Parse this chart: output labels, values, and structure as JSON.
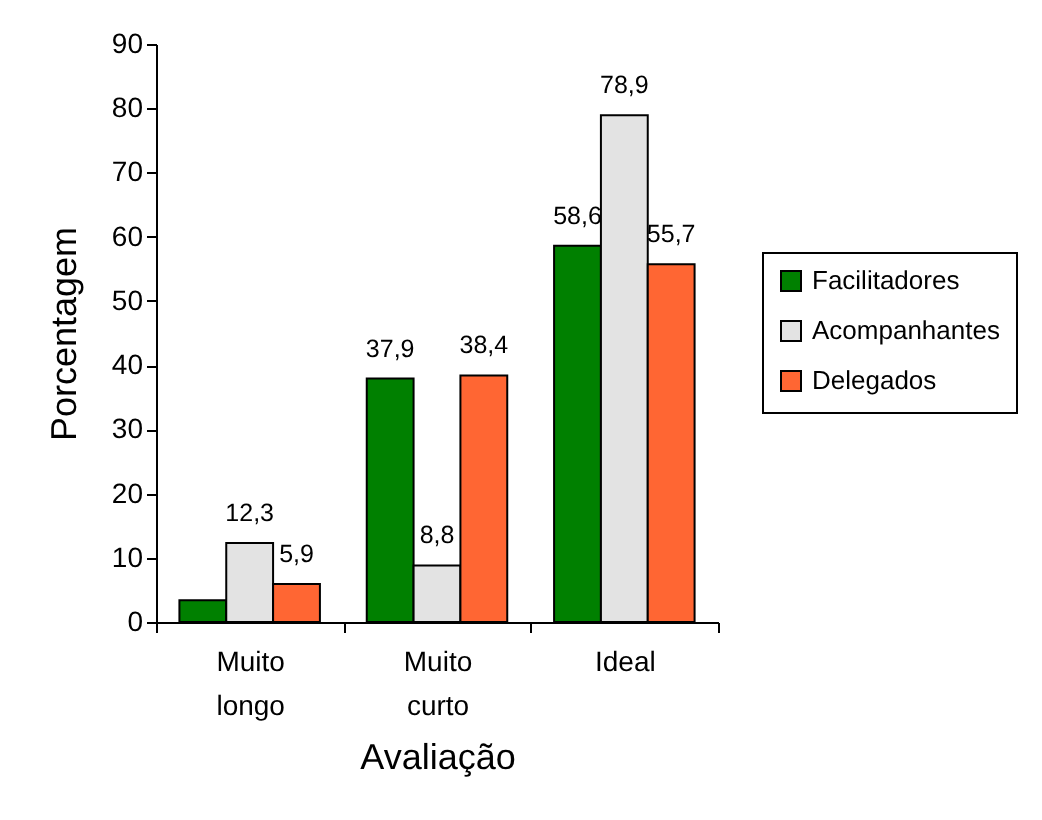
{
  "chart_data": {
    "type": "bar",
    "categories": [
      "Muito longo",
      "Muito curto",
      "Ideal"
    ],
    "xlabel": "Avaliação",
    "ylabel": "Porcentagem",
    "ylim": [
      0,
      90
    ],
    "yticks": [
      0,
      10,
      20,
      30,
      40,
      50,
      60,
      70,
      80,
      90
    ],
    "legend": "right",
    "series": [
      {
        "name": "Facilitadores",
        "color": "#008000",
        "values": [
          3.4,
          37.9,
          58.6
        ],
        "value_labels": [
          null,
          "37,9",
          "58,6"
        ]
      },
      {
        "name": "Acompanhantes",
        "color": "#e3e3e3",
        "values": [
          12.3,
          8.8,
          78.9
        ],
        "value_labels": [
          "12,3",
          "8,8",
          "78,9"
        ]
      },
      {
        "name": "Delegados",
        "color": "#ff6633",
        "values": [
          5.9,
          38.4,
          55.7
        ],
        "value_labels": [
          "5,9",
          "38,4",
          "55,7"
        ]
      }
    ]
  }
}
